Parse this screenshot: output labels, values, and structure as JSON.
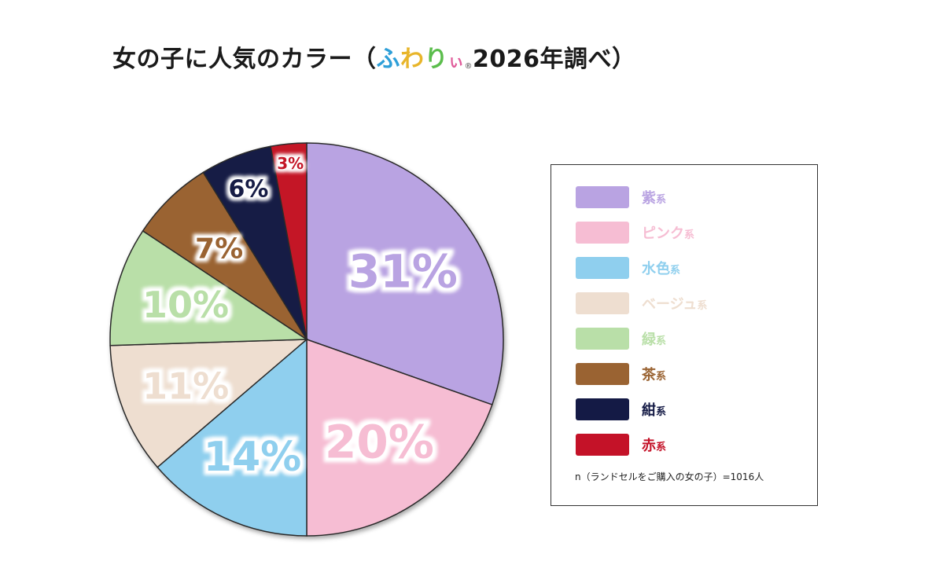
{
  "title": {
    "prefix": "女の子に人気のカラー（",
    "brand_chars": [
      "ふ",
      "わ",
      "り",
      "ぃ"
    ],
    "brand_colors": [
      "#2e9fd8",
      "#e8b52a",
      "#5bbd4c",
      "#e05c9a"
    ],
    "registered": "®",
    "suffix": "2026年調べ）"
  },
  "chart_data": {
    "type": "pie",
    "title": "女の子に人気のカラー（ふわりぃ® 2026年調べ）",
    "slices": [
      {
        "label": "紫",
        "value": 31,
        "value_label": "31%",
        "color": "#b9a3e2"
      },
      {
        "label": "ピンク",
        "value": 20,
        "value_label": "20%",
        "color": "#f6bdd3"
      },
      {
        "label": "水色",
        "value": 14,
        "value_label": "14%",
        "color": "#8fcfee"
      },
      {
        "label": "ベージュ",
        "value": 11,
        "value_label": "11%",
        "color": "#eeded0"
      },
      {
        "label": "緑",
        "value": 10,
        "value_label": "10%",
        "color": "#b9dfa8"
      },
      {
        "label": "茶",
        "value": 7,
        "value_label": "7%",
        "color": "#9a6332"
      },
      {
        "label": "紺",
        "value": 6,
        "value_label": "6%",
        "color": "#141a45"
      },
      {
        "label": "赤",
        "value": 3,
        "value_label": "3%",
        "color": "#c41228"
      }
    ],
    "legend_position": "right",
    "legend_suffix": "系",
    "note": "n（ランドセルをご購入の女の子）=1016人"
  }
}
